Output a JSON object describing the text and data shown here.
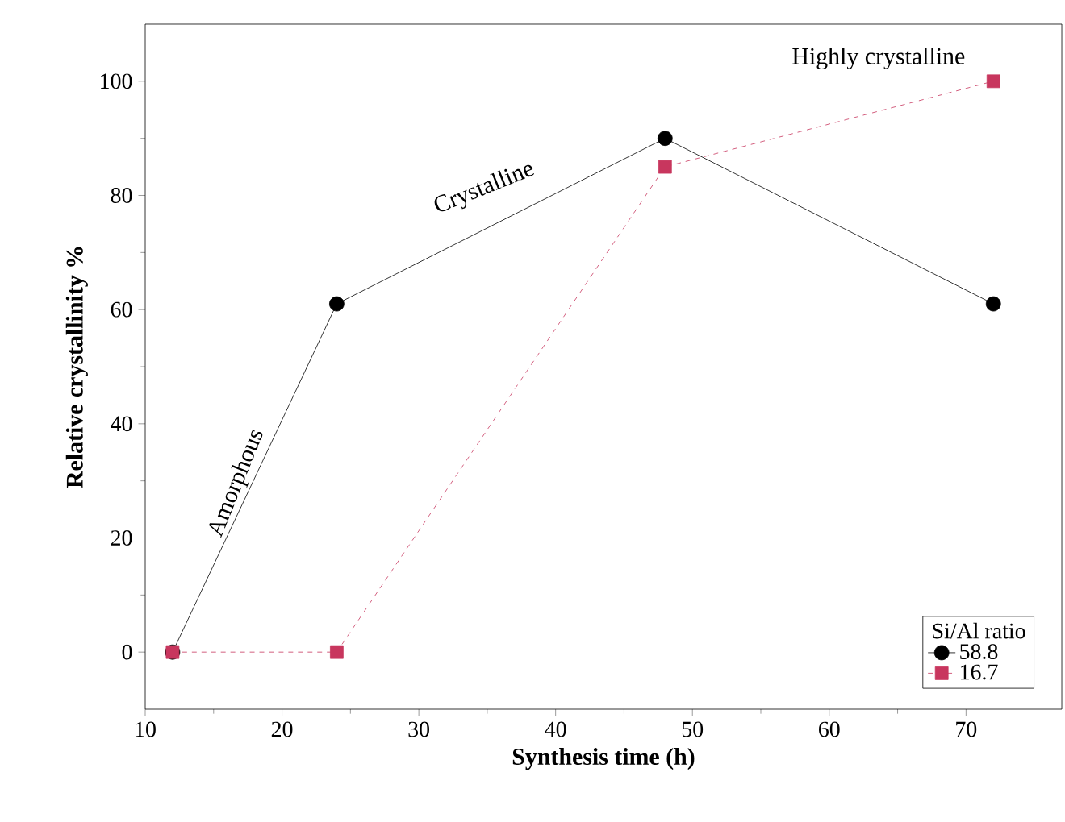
{
  "chart_data": {
    "type": "line",
    "xlabel": "Synthesis time (h)",
    "ylabel": "Relative crystallinity %",
    "x": [
      12,
      24,
      48,
      72
    ],
    "series": [
      {
        "name": "58.8",
        "color": "#000000",
        "values": [
          0,
          61,
          90,
          61
        ],
        "marker": "circle",
        "line_style": "solid"
      },
      {
        "name": "16.7",
        "color": "#c8365e",
        "values": [
          0,
          0,
          85,
          100
        ],
        "marker": "square",
        "line_style": "dashed"
      }
    ],
    "xlim": [
      10,
      77
    ],
    "xticks": [
      10,
      20,
      30,
      40,
      50,
      60,
      70
    ],
    "ylim": [
      -10,
      110
    ],
    "yticks": [
      0,
      20,
      40,
      60,
      80,
      100
    ],
    "legend": "bottom right",
    "legend_title": "Si/Al ratio",
    "grid": false,
    "annotations": [
      "Amorphous",
      "Crystalline",
      "Highly crystalline"
    ]
  }
}
